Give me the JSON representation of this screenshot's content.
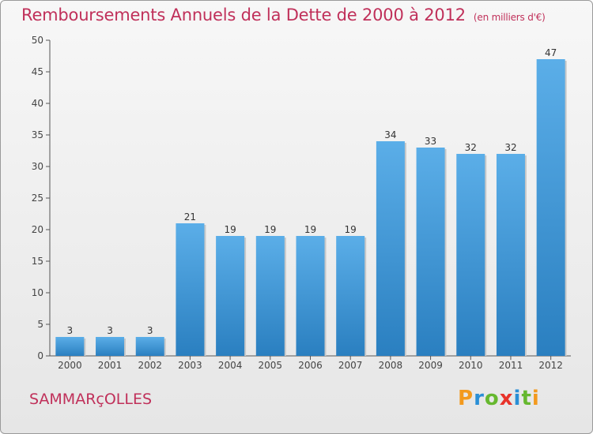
{
  "chart_data": {
    "type": "bar",
    "title": "Remboursements Annuels de la Dette de 2000 à 2012",
    "subtitle": "(en milliers d'€)",
    "categories": [
      "2000",
      "2001",
      "2002",
      "2003",
      "2004",
      "2005",
      "2006",
      "2007",
      "2008",
      "2009",
      "2010",
      "2011",
      "2012"
    ],
    "values": [
      3,
      3,
      3,
      21,
      19,
      19,
      19,
      19,
      34,
      33,
      32,
      32,
      47
    ],
    "xlabel": "",
    "ylabel": "",
    "ylim": [
      0,
      50
    ],
    "yticks": [
      0,
      5,
      10,
      15,
      20,
      25,
      30,
      35,
      40,
      45,
      50
    ],
    "grid": false,
    "bar_color_top": "#5baee8",
    "bar_color_bottom": "#2a7fc0",
    "text_color": "#c0305a"
  },
  "footer": {
    "commune": "SAMMARçOLLES",
    "logo_letters": [
      {
        "ch": "P",
        "color": "#f39a1e"
      },
      {
        "ch": "r",
        "color": "#2a8fd6"
      },
      {
        "ch": "o",
        "color": "#66b82f"
      },
      {
        "ch": "x",
        "color": "#e8332a"
      },
      {
        "ch": "i",
        "color": "#2a8fd6"
      },
      {
        "ch": "t",
        "color": "#66b82f"
      },
      {
        "ch": "i",
        "color": "#f39a1e"
      }
    ]
  }
}
